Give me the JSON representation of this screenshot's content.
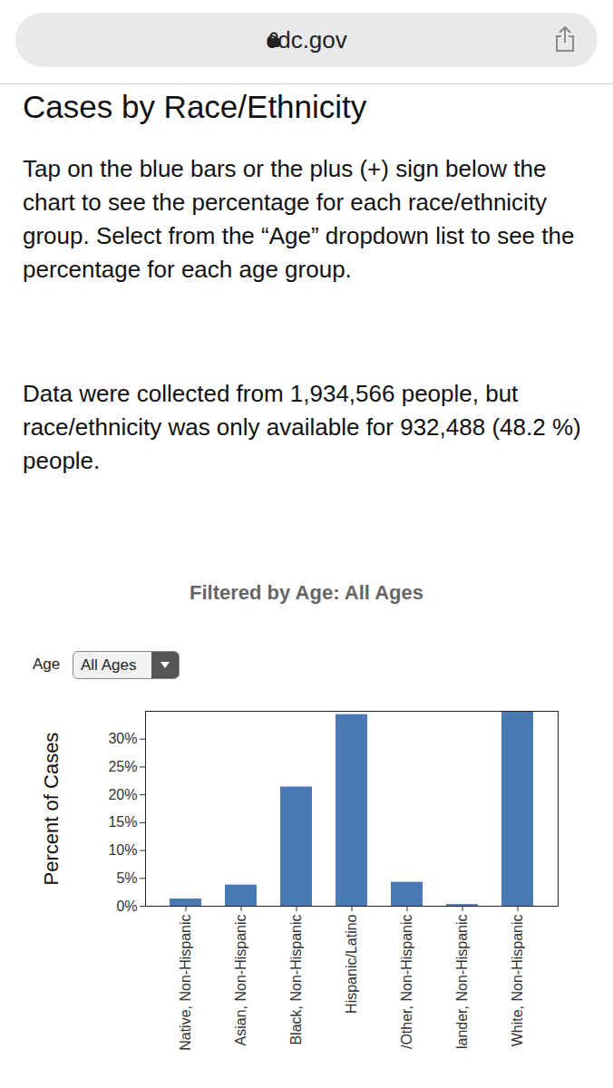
{
  "page": {
    "url": "cdc.gov",
    "heading": "Cases by Race/Ethnicity",
    "paragraphs": [
      "Tap on the blue bars or the plus (+) sign below the chart to see the percentage for each race/ethnicity group. Select from the “Age” dropdown list to see the percentage for each age group.",
      "Data were collected from 1,934,566 people, but race/ethnicity was only available for 932,488 (48.2 %) people."
    ],
    "dropdown_label": "Age",
    "dropdown_value": "All Ages"
  },
  "chart_data": {
    "type": "bar",
    "title": "Filtered by Age: All Ages",
    "y_label": "Percent of Cases",
    "categories": [
      "Native, Non-Hispanic",
      "Asian, Non-Hispanic",
      "Black, Non-Hispanic",
      "Hispanic/Latino",
      "/Other, Non-Hispanic",
      "lander, Non-Hispanic",
      "White, Non-Hispanic"
    ],
    "values": [
      1.3,
      3.8,
      21.4,
      34.4,
      4.3,
      0.3,
      34.9
    ],
    "color": "#4a7ab4",
    "ylim": [
      0,
      35
    ],
    "yticks": [
      {
        "value": 0,
        "label": "0%"
      },
      {
        "value": 5,
        "label": "5%"
      },
      {
        "value": 10,
        "label": "10%"
      },
      {
        "value": 15,
        "label": "15%"
      },
      {
        "value": 20,
        "label": "20%"
      },
      {
        "value": 25,
        "label": "25%"
      },
      {
        "value": 30,
        "label": "30%"
      }
    ],
    "grid": false
  }
}
